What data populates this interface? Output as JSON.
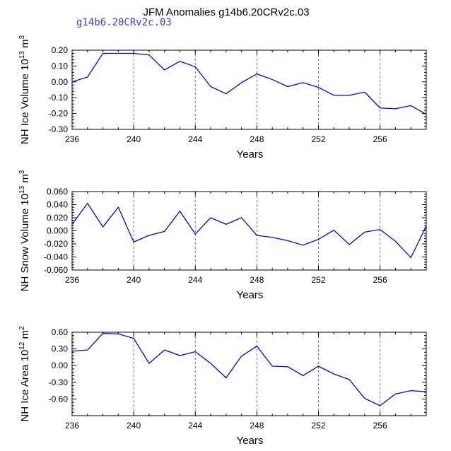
{
  "figure": {
    "title": "JFM Anomalies g14b6.20CRv2c.03",
    "case_label": "g14b6.20CRv2c.03"
  },
  "chart_data": [
    {
      "type": "line",
      "id": "ice-volume",
      "ylabel_main": "NH Ice Volume 10",
      "ylabel_exp": "13",
      "ylabel_unit": " m",
      "ylabel_unit_exp": "3",
      "xlabel": "Years",
      "xlim": [
        236,
        259
      ],
      "ylim": [
        -0.3,
        0.2
      ],
      "xticks": [
        236,
        240,
        244,
        248,
        252,
        256
      ],
      "yticks": [
        0.2,
        0.1,
        0.0,
        -0.1,
        -0.2,
        -0.3
      ],
      "ytick_labels": [
        "0.20",
        "0.10",
        "0.00",
        "-0.10",
        "-0.20",
        "-0.30"
      ],
      "x": [
        236,
        237,
        238,
        239,
        240,
        241,
        242,
        243,
        244,
        245,
        246,
        247,
        248,
        249,
        250,
        251,
        252,
        253,
        254,
        255,
        256,
        257,
        258,
        259
      ],
      "series": [
        {
          "name": "NH Ice Volume",
          "color": "#0000ff",
          "values": [
            0.0,
            0.03,
            0.18,
            0.18,
            0.18,
            0.17,
            0.075,
            0.13,
            0.095,
            -0.03,
            -0.075,
            -0.005,
            0.05,
            0.015,
            -0.03,
            -0.005,
            -0.035,
            -0.085,
            -0.085,
            -0.065,
            -0.165,
            -0.17,
            -0.15,
            -0.205
          ]
        }
      ]
    },
    {
      "type": "line",
      "id": "snow-volume",
      "ylabel_main": "NH Snow Volume 10",
      "ylabel_exp": "13",
      "ylabel_unit": " m",
      "ylabel_unit_exp": "3",
      "xlabel": "Years",
      "xlim": [
        236,
        259
      ],
      "ylim": [
        -0.06,
        0.06
      ],
      "xticks": [
        236,
        240,
        244,
        248,
        252,
        256
      ],
      "yticks": [
        0.06,
        0.04,
        0.02,
        0.0,
        -0.02,
        -0.04,
        -0.06
      ],
      "ytick_labels": [
        "0.060",
        "0.040",
        "0.020",
        "0.000",
        "-0.020",
        "-0.040",
        "-0.060"
      ],
      "x": [
        236,
        237,
        238,
        239,
        240,
        241,
        242,
        243,
        244,
        245,
        246,
        247,
        248,
        249,
        250,
        251,
        252,
        253,
        254,
        255,
        256,
        257,
        258,
        259
      ],
      "series": [
        {
          "name": "NH Snow Volume",
          "color": "#0000ff",
          "values": [
            0.01,
            0.042,
            0.006,
            0.036,
            -0.017,
            -0.007,
            -0.001,
            0.03,
            -0.005,
            0.02,
            0.01,
            0.02,
            -0.007,
            -0.01,
            -0.015,
            -0.022,
            -0.013,
            0.001,
            -0.021,
            -0.002,
            0.002,
            -0.016,
            -0.041,
            0.007
          ]
        }
      ]
    },
    {
      "type": "line",
      "id": "ice-area",
      "ylabel_main": "NH Ice Area 10",
      "ylabel_exp": "12",
      "ylabel_unit": " m",
      "ylabel_unit_exp": "2",
      "xlabel": "Years",
      "xlim": [
        236,
        259
      ],
      "ylim": [
        -0.9,
        0.6
      ],
      "xticks": [
        236,
        240,
        244,
        248,
        252,
        256
      ],
      "yticks": [
        0.6,
        0.3,
        0.0,
        -0.3,
        -0.6
      ],
      "ytick_labels": [
        "0.60",
        "0.30",
        "0.00",
        "-0.30",
        "-0.60"
      ],
      "x": [
        236,
        237,
        238,
        239,
        240,
        241,
        242,
        243,
        244,
        245,
        246,
        247,
        248,
        249,
        250,
        251,
        252,
        253,
        254,
        255,
        256,
        257,
        258,
        259
      ],
      "series": [
        {
          "name": "NH Ice Area",
          "color": "#0000ff",
          "values": [
            0.26,
            0.28,
            0.58,
            0.57,
            0.49,
            0.04,
            0.28,
            0.18,
            0.25,
            0.04,
            -0.22,
            0.17,
            0.35,
            -0.01,
            -0.02,
            -0.18,
            -0.01,
            -0.15,
            -0.25,
            -0.59,
            -0.72,
            -0.51,
            -0.45,
            -0.47
          ]
        }
      ]
    }
  ]
}
